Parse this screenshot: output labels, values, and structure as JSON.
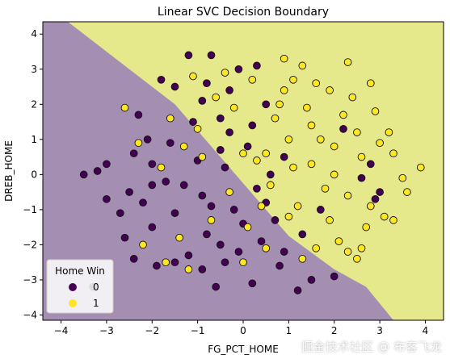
{
  "chart_data": {
    "type": "scatter",
    "title": "Linear SVC Decision Boundary",
    "xlabel": "FG_PCT_HOME",
    "ylabel": "DREB_HOME",
    "xlim": [
      -4.4,
      4.4
    ],
    "ylim": [
      -4.15,
      4.35
    ],
    "x_ticks": [
      "−4",
      "−3",
      "−2",
      "−1",
      "0",
      "1",
      "2",
      "3",
      "4"
    ],
    "y_ticks": [
      "−4",
      "−3",
      "−2",
      "−1",
      "0",
      "1",
      "2",
      "3",
      "4"
    ],
    "grid": false,
    "legend": {
      "title": "Home Win",
      "position": "lower-left"
    },
    "decision_boundary": {
      "class_regions": {
        "0": "lower-left",
        "1": "upper-right"
      },
      "line": [
        [
          -3.85,
          4.35
        ],
        [
          -1.5,
          2.0
        ],
        [
          1.0,
          -1.75
        ],
        [
          2.0,
          -2.7
        ],
        [
          2.7,
          -3.2
        ],
        [
          3.3,
          -4.15
        ]
      ]
    },
    "series": [
      {
        "name": "0",
        "color": "#440154",
        "points": [
          [
            -2.0,
            0.3
          ],
          [
            -1.0,
            0.4
          ],
          [
            -0.5,
            1.6
          ],
          [
            -0.1,
            3.0
          ],
          [
            -1.8,
            2.7
          ],
          [
            -1.5,
            2.5
          ],
          [
            -2.3,
            1.7
          ],
          [
            -0.9,
            2.1
          ],
          [
            -0.3,
            2.4
          ],
          [
            -1.7,
            -0.2
          ],
          [
            -2.2,
            -0.8
          ],
          [
            -2.5,
            -0.5
          ],
          [
            -0.7,
            -0.9
          ],
          [
            -1.3,
            -0.3
          ],
          [
            -0.2,
            -1.0
          ],
          [
            0.3,
            -0.4
          ],
          [
            0.5,
            -0.8
          ],
          [
            0.1,
            0.8
          ],
          [
            -0.8,
            -1.7
          ],
          [
            -1.5,
            -1.1
          ],
          [
            -2.0,
            -1.5
          ],
          [
            -2.7,
            -1.1
          ],
          [
            -3.2,
            0.1
          ],
          [
            -3.0,
            0.3
          ],
          [
            -3.5,
            0.0
          ],
          [
            -2.6,
            -1.8
          ],
          [
            -1.2,
            -2.3
          ],
          [
            -1.5,
            -2.5
          ],
          [
            -0.9,
            -2.7
          ],
          [
            -0.4,
            -2.5
          ],
          [
            -0.1,
            -2.2
          ],
          [
            -0.6,
            -3.2
          ],
          [
            0.2,
            -3.1
          ],
          [
            1.2,
            -3.3
          ],
          [
            1.5,
            -3.0
          ],
          [
            2.0,
            -2.9
          ],
          [
            0.8,
            -2.6
          ],
          [
            -1.2,
            3.4
          ],
          [
            -0.7,
            3.4
          ],
          [
            0.5,
            2.0
          ],
          [
            -0.3,
            1.2
          ],
          [
            -1.9,
            -2.6
          ],
          [
            -3.3,
            -3.2
          ],
          [
            -2.4,
            -2.4
          ],
          [
            0.9,
            -2.2
          ],
          [
            1.3,
            -1.7
          ],
          [
            0.7,
            -1.3
          ],
          [
            1.7,
            -1.0
          ],
          [
            2.6,
            -0.1
          ],
          [
            2.8,
            0.3
          ],
          [
            2.9,
            -0.7
          ],
          [
            3.0,
            -0.5
          ],
          [
            2.2,
            1.3
          ],
          [
            0.3,
            3.1
          ],
          [
            -0.5,
            -2.0
          ],
          [
            -1.6,
            0.9
          ],
          [
            -2.1,
            1.0
          ],
          [
            -0.4,
            0.2
          ],
          [
            0.0,
            -1.4
          ],
          [
            0.6,
            0.0
          ],
          [
            -1.1,
            1.5
          ],
          [
            -0.5,
            0.7
          ],
          [
            -0.9,
            -0.6
          ],
          [
            -2.4,
            0.6
          ],
          [
            -2.0,
            -0.3
          ],
          [
            0.9,
            0.5
          ],
          [
            0.2,
            1.4
          ],
          [
            -0.8,
            2.6
          ],
          [
            -3.0,
            -0.7
          ],
          [
            0.4,
            -1.9
          ]
        ]
      },
      {
        "name": "1",
        "color": "#fde725",
        "points": [
          [
            0.5,
            0.6
          ],
          [
            1.0,
            1.0
          ],
          [
            1.5,
            0.3
          ],
          [
            2.0,
            0.8
          ],
          [
            2.5,
            1.2
          ],
          [
            1.8,
            -0.4
          ],
          [
            1.2,
            -0.9
          ],
          [
            2.3,
            -0.6
          ],
          [
            0.7,
            1.6
          ],
          [
            1.4,
            1.9
          ],
          [
            2.2,
            1.7
          ],
          [
            0.9,
            2.4
          ],
          [
            1.6,
            2.6
          ],
          [
            2.4,
            2.2
          ],
          [
            2.9,
            1.8
          ],
          [
            3.0,
            0.9
          ],
          [
            3.3,
            0.6
          ],
          [
            3.5,
            -0.1
          ],
          [
            3.1,
            -1.2
          ],
          [
            2.7,
            -1.5
          ],
          [
            2.1,
            -1.9
          ],
          [
            1.6,
            -2.1
          ],
          [
            2.3,
            -2.2
          ],
          [
            1.0,
            -1.2
          ],
          [
            0.3,
            0.4
          ],
          [
            0.0,
            0.6
          ],
          [
            -0.2,
            1.9
          ],
          [
            -0.6,
            2.2
          ],
          [
            -1.0,
            1.3
          ],
          [
            -1.3,
            0.8
          ],
          [
            -1.8,
            0.2
          ],
          [
            -2.6,
            1.9
          ],
          [
            -1.1,
            2.8
          ],
          [
            -0.4,
            2.9
          ],
          [
            0.9,
            3.3
          ],
          [
            1.3,
            3.1
          ],
          [
            2.3,
            3.2
          ],
          [
            1.9,
            2.4
          ],
          [
            2.8,
            2.6
          ],
          [
            3.2,
            1.2
          ],
          [
            3.9,
            0.2
          ],
          [
            3.6,
            -0.5
          ],
          [
            3.3,
            -1.3
          ],
          [
            2.6,
            -2.1
          ],
          [
            2.5,
            -2.4
          ],
          [
            1.3,
            -2.4
          ],
          [
            0.5,
            -2.1
          ],
          [
            0.1,
            -1.5
          ],
          [
            -0.7,
            -1.3
          ],
          [
            -1.4,
            -1.8
          ],
          [
            -1.7,
            -2.5
          ],
          [
            -1.2,
            -2.7
          ],
          [
            -2.2,
            -2.0
          ],
          [
            0.0,
            -2.5
          ],
          [
            -0.3,
            -0.5
          ],
          [
            0.4,
            -0.9
          ],
          [
            -1.6,
            1.6
          ],
          [
            0.2,
            2.7
          ],
          [
            1.7,
            1.0
          ],
          [
            0.6,
            -0.3
          ],
          [
            2.0,
            0.0
          ],
          [
            1.1,
            0.2
          ],
          [
            2.6,
            0.5
          ],
          [
            1.5,
            1.4
          ],
          [
            0.8,
            2.0
          ],
          [
            -0.9,
            0.5
          ],
          [
            -2.3,
            0.9
          ],
          [
            1.9,
            -1.3
          ],
          [
            2.8,
            -0.9
          ],
          [
            1.1,
            2.7
          ]
        ]
      }
    ]
  },
  "footer": {
    "watermark": "掘金技术社区 @ 布客飞龙"
  }
}
